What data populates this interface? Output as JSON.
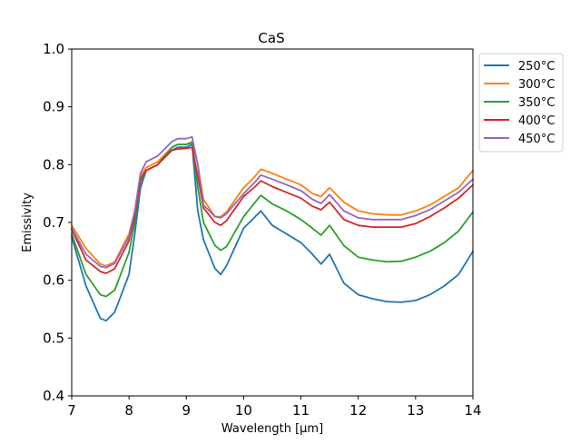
{
  "chart_data": {
    "type": "line",
    "title": "CaS",
    "xlabel": "Wavelength [μm]",
    "ylabel": "Emissivity",
    "xlim": [
      7,
      14
    ],
    "ylim": [
      0.4,
      1.0
    ],
    "xticks": [
      7,
      8,
      9,
      10,
      11,
      12,
      13,
      14
    ],
    "xtick_labels": [
      "7",
      "8",
      "9",
      "10",
      "11",
      "12",
      "13",
      "14"
    ],
    "yticks": [
      0.4,
      0.5,
      0.6,
      0.7,
      0.8,
      0.9,
      1.0
    ],
    "ytick_labels": [
      "0.4",
      "0.5",
      "0.6",
      "0.7",
      "0.8",
      "0.9",
      "1.0"
    ],
    "grid": false,
    "legend_position": "outside-top-right",
    "x": [
      7.0,
      7.25,
      7.5,
      7.6,
      7.75,
      8.0,
      8.1,
      8.2,
      8.3,
      8.5,
      8.75,
      8.85,
      9.0,
      9.1,
      9.2,
      9.3,
      9.5,
      9.6,
      9.7,
      10.0,
      10.2,
      10.3,
      10.5,
      10.75,
      11.0,
      11.2,
      11.35,
      11.5,
      11.75,
      12.0,
      12.25,
      12.5,
      12.75,
      13.0,
      13.25,
      13.5,
      13.75,
      14.0
    ],
    "series": [
      {
        "name": "250°C",
        "color": "#1f77b4",
        "values": [
          0.675,
          0.59,
          0.534,
          0.53,
          0.545,
          0.61,
          0.68,
          0.76,
          0.79,
          0.8,
          0.825,
          0.83,
          0.83,
          0.835,
          0.72,
          0.67,
          0.62,
          0.61,
          0.625,
          0.69,
          0.71,
          0.72,
          0.695,
          0.68,
          0.665,
          0.645,
          0.628,
          0.645,
          0.595,
          0.575,
          0.568,
          0.563,
          0.562,
          0.565,
          0.575,
          0.59,
          0.61,
          0.65
        ]
      },
      {
        "name": "300°C",
        "color": "#ff7f0e",
        "values": [
          0.695,
          0.655,
          0.628,
          0.625,
          0.632,
          0.68,
          0.72,
          0.78,
          0.795,
          0.805,
          0.83,
          0.835,
          0.835,
          0.84,
          0.8,
          0.74,
          0.71,
          0.71,
          0.718,
          0.76,
          0.78,
          0.792,
          0.785,
          0.775,
          0.765,
          0.75,
          0.745,
          0.76,
          0.735,
          0.72,
          0.715,
          0.713,
          0.713,
          0.72,
          0.73,
          0.745,
          0.76,
          0.79
        ]
      },
      {
        "name": "350°C",
        "color": "#2ca02c",
        "values": [
          0.68,
          0.61,
          0.575,
          0.572,
          0.583,
          0.648,
          0.7,
          0.77,
          0.79,
          0.8,
          0.83,
          0.835,
          0.835,
          0.838,
          0.76,
          0.7,
          0.66,
          0.652,
          0.658,
          0.71,
          0.735,
          0.747,
          0.732,
          0.72,
          0.705,
          0.69,
          0.678,
          0.695,
          0.66,
          0.64,
          0.635,
          0.632,
          0.633,
          0.64,
          0.65,
          0.665,
          0.685,
          0.718
        ]
      },
      {
        "name": "400°C",
        "color": "#d62728",
        "values": [
          0.688,
          0.635,
          0.615,
          0.612,
          0.62,
          0.668,
          0.71,
          0.775,
          0.79,
          0.8,
          0.825,
          0.827,
          0.828,
          0.83,
          0.78,
          0.725,
          0.7,
          0.695,
          0.703,
          0.745,
          0.762,
          0.772,
          0.762,
          0.752,
          0.742,
          0.728,
          0.722,
          0.735,
          0.705,
          0.695,
          0.692,
          0.692,
          0.692,
          0.698,
          0.71,
          0.725,
          0.742,
          0.765
        ]
      },
      {
        "name": "450°C",
        "color": "#9467bd",
        "values": [
          0.69,
          0.645,
          0.624,
          0.622,
          0.629,
          0.675,
          0.72,
          0.785,
          0.805,
          0.815,
          0.84,
          0.845,
          0.845,
          0.848,
          0.8,
          0.73,
          0.71,
          0.708,
          0.715,
          0.75,
          0.77,
          0.782,
          0.775,
          0.765,
          0.755,
          0.74,
          0.733,
          0.748,
          0.72,
          0.708,
          0.705,
          0.705,
          0.705,
          0.712,
          0.722,
          0.737,
          0.752,
          0.775
        ]
      }
    ]
  }
}
